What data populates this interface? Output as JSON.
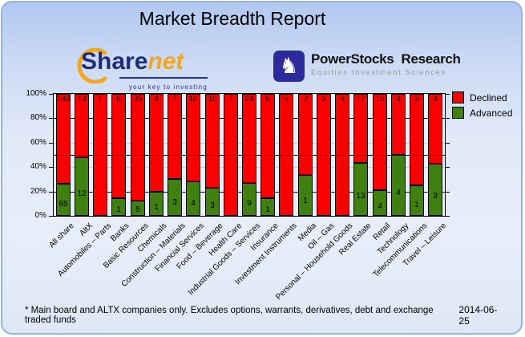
{
  "title": "Market Breadth Report",
  "logos": {
    "sharenet": {
      "word1": "Share",
      "word2": "net",
      "tagline": "your key to investing"
    },
    "powerstocks": {
      "word1": "PowerStocks",
      "word2": "Research",
      "tagline": "Equities Investment Sciences",
      "knight_icon": "♞"
    }
  },
  "legend": {
    "declined": "Declined",
    "advanced": "Advanced"
  },
  "colors": {
    "declined": "#fb0000",
    "advanced": "#3f8010",
    "grid_major": "#000080",
    "grid_minor": "#c9c9c9",
    "reference_line": "#000000"
  },
  "footer": {
    "note": "* Main board and ALTX companies only. Excludes options, warrants, derivatives, debt and exchange traded funds",
    "date": "2014-06-25"
  },
  "chart_data": {
    "type": "bar",
    "stacked": true,
    "normalized": "percent",
    "title": "Market Breadth Report",
    "categories": [
      "All share",
      "AltX",
      "Automobiles – Parts",
      "Banks",
      "Basic Resources",
      "Chemicals",
      "Construction – Materials",
      "Financial Services",
      "Food – Beverage",
      "Health Care",
      "Industrial Goods – Services",
      "Insurance",
      "Investment Instruments",
      "Media",
      "Oil – Gas",
      "Personal – Household Goods",
      "Real Estate",
      "Retail",
      "Technology",
      "Telecommunications",
      "Travel – Leisure"
    ],
    "series": [
      {
        "name": "Declined",
        "color": "#fb0000",
        "values": [
          183,
          13,
          1,
          6,
          35,
          4,
          7,
          10,
          10,
          7,
          24,
          6,
          5,
          2,
          3,
          6,
          17,
          15,
          4,
          3,
          4
        ]
      },
      {
        "name": "Advanced",
        "color": "#3f8010",
        "values": [
          65,
          12,
          0,
          1,
          5,
          1,
          3,
          4,
          3,
          0,
          9,
          1,
          0,
          1,
          0,
          0,
          13,
          4,
          4,
          1,
          3
        ]
      }
    ],
    "y_ticks": [
      "100%",
      "80%",
      "60%",
      "40%",
      "20%",
      "0%"
    ],
    "ylim": [
      0,
      100
    ],
    "reference_line_pct": 50,
    "grid": "on",
    "legend_position": "right"
  }
}
